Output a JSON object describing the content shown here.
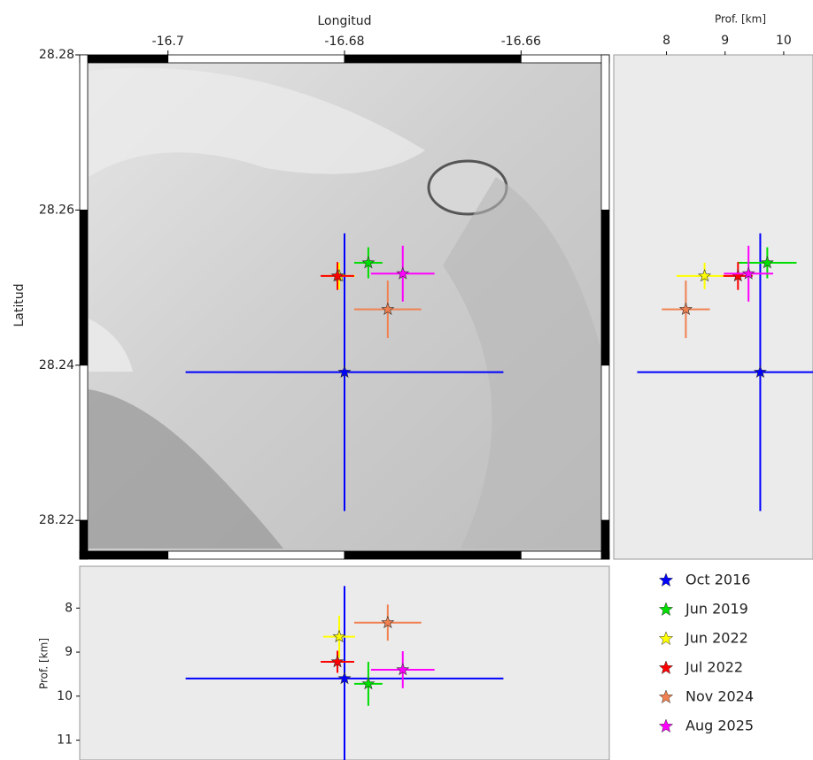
{
  "chart_data": {
    "type": "scatter",
    "xlabel": "Longitud",
    "ylabel": "Latitud",
    "depth_xlabel": "Prof. [km]",
    "depth_ylabel": "Prof. [km]",
    "xlim": [
      -16.71,
      -16.65
    ],
    "xticks": [
      -16.7,
      -16.68,
      -16.66
    ],
    "ylim": [
      28.215,
      28.28
    ],
    "yticks": [
      28.22,
      28.24,
      28.26,
      28.28
    ],
    "depth_xlim": [
      7.1,
      10.5
    ],
    "depth_xticks": [
      8,
      9,
      10
    ],
    "depth_ylim": [
      7.05,
      11.45
    ],
    "depth_yticks": [
      8,
      9,
      10,
      11
    ],
    "series": [
      {
        "name": "Oct 2016",
        "color": "#0000ff",
        "lon": -16.68,
        "lat": 28.2391,
        "depth": 9.6,
        "lon_err": 0.018,
        "lat_err": 0.0179,
        "depth_err": 2.1
      },
      {
        "name": "Jun 2019",
        "color": "#00dd00",
        "lon": -16.6773,
        "lat": 28.2532,
        "depth": 9.72,
        "lon_err": 0.0016,
        "lat_err": 0.002,
        "depth_err": 0.5
      },
      {
        "name": "Jun 2022",
        "color": "#ffff00",
        "lon": -16.6806,
        "lat": 28.2515,
        "depth": 8.65,
        "lon_err": 0.0018,
        "lat_err": 0.0017,
        "depth_err": 0.48
      },
      {
        "name": "Jul 2022",
        "color": "#ff0000",
        "lon": -16.6808,
        "lat": 28.2515,
        "depth": 9.22,
        "lon_err": 0.0019,
        "lat_err": 0.0018,
        "depth_err": 0.25
      },
      {
        "name": "Nov 2024",
        "color": "#f08050",
        "lon": -16.6751,
        "lat": 28.2472,
        "depth": 8.33,
        "lon_err": 0.0038,
        "lat_err": 0.0037,
        "depth_err": 0.41
      },
      {
        "name": "Aug 2025",
        "color": "#ff00ff",
        "lon": -16.6734,
        "lat": 28.2518,
        "depth": 9.4,
        "lon_err": 0.0036,
        "lat_err": 0.0036,
        "depth_err": 0.42
      }
    ]
  }
}
